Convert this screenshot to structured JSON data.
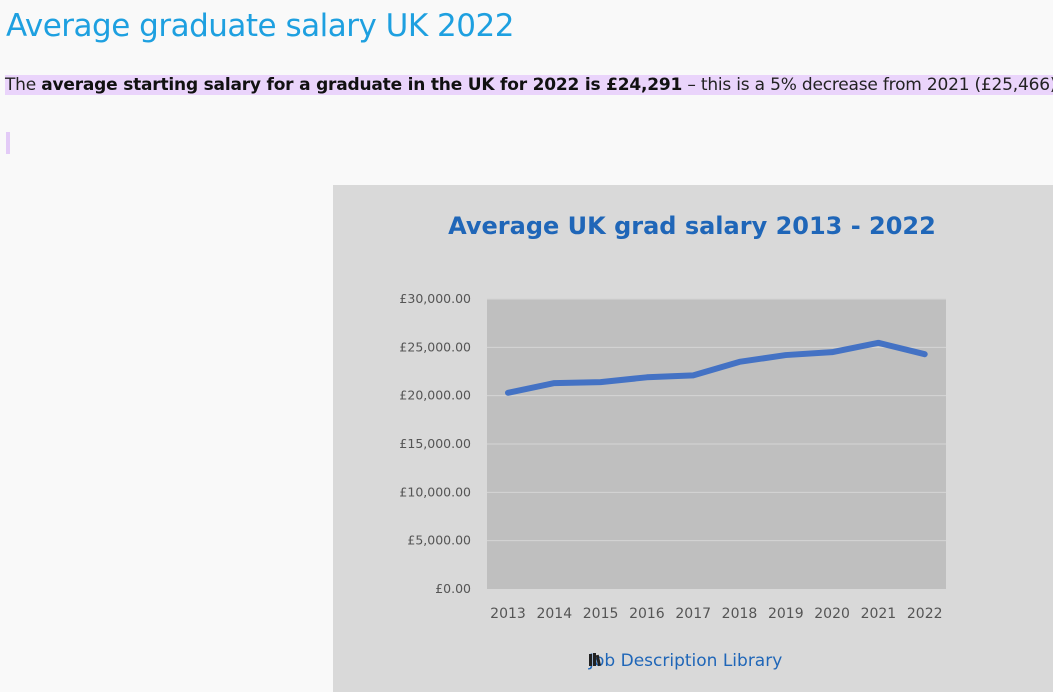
{
  "page": {
    "heading": "Average graduate salary UK 2022",
    "intro": {
      "prefix": "The ",
      "bold": "average starting salary for a graduate in the UK for 2022 is £24,291",
      "suffix": " – this is a 5% decrease from 2021 (£25,466)."
    }
  },
  "brand": {
    "label": "Job Description Library",
    "icon": "books-icon"
  },
  "colors": {
    "heading": "#1ea0e0",
    "chart_title": "#1f66b8",
    "series_line": "#4472c4",
    "plot_bg": "#bfbfbf",
    "card_bg": "#d9d9d9",
    "highlight": "#ead4fb"
  },
  "chart_data": {
    "type": "line",
    "title": "Average UK grad salary 2013 - 2022",
    "xlabel": "",
    "ylabel": "",
    "categories": [
      "2013",
      "2014",
      "2015",
      "2016",
      "2017",
      "2018",
      "2019",
      "2020",
      "2021",
      "2022"
    ],
    "series": [
      {
        "values": [
          20300,
          21300,
          21400,
          21900,
          22100,
          23500,
          24200,
          24500,
          25466,
          24291
        ]
      }
    ],
    "ylim": [
      0,
      30000
    ],
    "yticks": [
      0,
      5000,
      10000,
      15000,
      20000,
      25000,
      30000
    ],
    "ytick_labels": [
      "£0.00",
      "£5,000.00",
      "£10,000.00",
      "£15,000.00",
      "£20,000.00",
      "£25,000.00",
      "£30,000.00"
    ],
    "grid": true,
    "legend": "none"
  }
}
